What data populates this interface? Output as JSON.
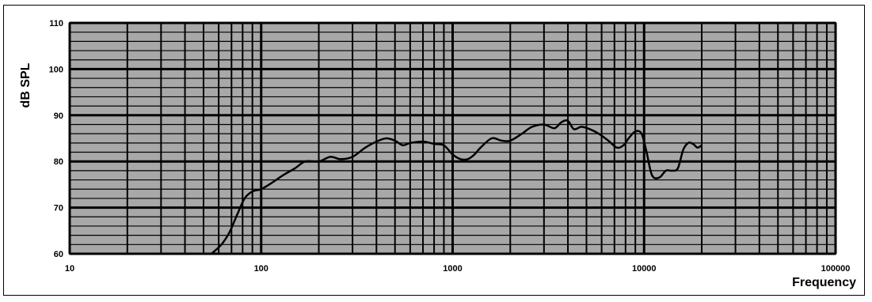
{
  "chart_data": {
    "type": "line",
    "title": "",
    "xlabel": "Frequency",
    "ylabel": "dB SPL",
    "xscale": "log",
    "xlim": [
      10,
      100000
    ],
    "ylim": [
      60,
      110
    ],
    "x_ticks": [
      10,
      100,
      1000,
      10000,
      100000
    ],
    "x_tick_labels": [
      "10",
      "100",
      "1000",
      "10000",
      "100000"
    ],
    "y_ticks": [
      60,
      70,
      80,
      90,
      100,
      110
    ],
    "y_tick_labels": [
      "60",
      "70",
      "80",
      "90",
      "100",
      "110"
    ],
    "grid": true,
    "legend": "none",
    "colors": {
      "plot_background": "#a8a8a8",
      "grid": "#000000",
      "line": "#000000"
    },
    "series": [
      {
        "x": [
          55,
          62,
          68,
          75,
          82,
          90,
          100,
          115,
          130,
          150,
          170,
          200,
          230,
          260,
          300,
          350,
          400,
          450,
          500,
          550,
          600,
          700,
          800,
          900,
          1000,
          1100,
          1200,
          1300,
          1400,
          1600,
          1800,
          2000,
          2300,
          2600,
          3000,
          3400,
          3700,
          4000,
          4300,
          4700,
          5200,
          5800,
          6500,
          7200,
          7800,
          8300,
          9000,
          9700,
          10300,
          11000,
          12000,
          13000,
          14000,
          15000,
          16000,
          17000,
          18000,
          19000,
          20000
        ],
        "y": [
          60,
          62,
          64.5,
          68.5,
          72,
          73.5,
          74,
          75.5,
          77,
          78.5,
          80,
          80,
          81,
          80.5,
          81,
          83,
          84.3,
          85,
          84.5,
          83.5,
          84,
          84.3,
          83.8,
          83.5,
          81.5,
          80.5,
          80.5,
          81.5,
          83,
          85,
          84.5,
          84.5,
          86,
          87.5,
          88,
          87.2,
          88.5,
          88.8,
          87,
          87.5,
          87,
          86,
          84.5,
          83,
          83.5,
          85,
          86.5,
          86,
          82,
          77,
          76.5,
          78,
          78,
          78.5,
          82.5,
          84,
          83.8,
          83,
          83.5
        ]
      }
    ]
  }
}
